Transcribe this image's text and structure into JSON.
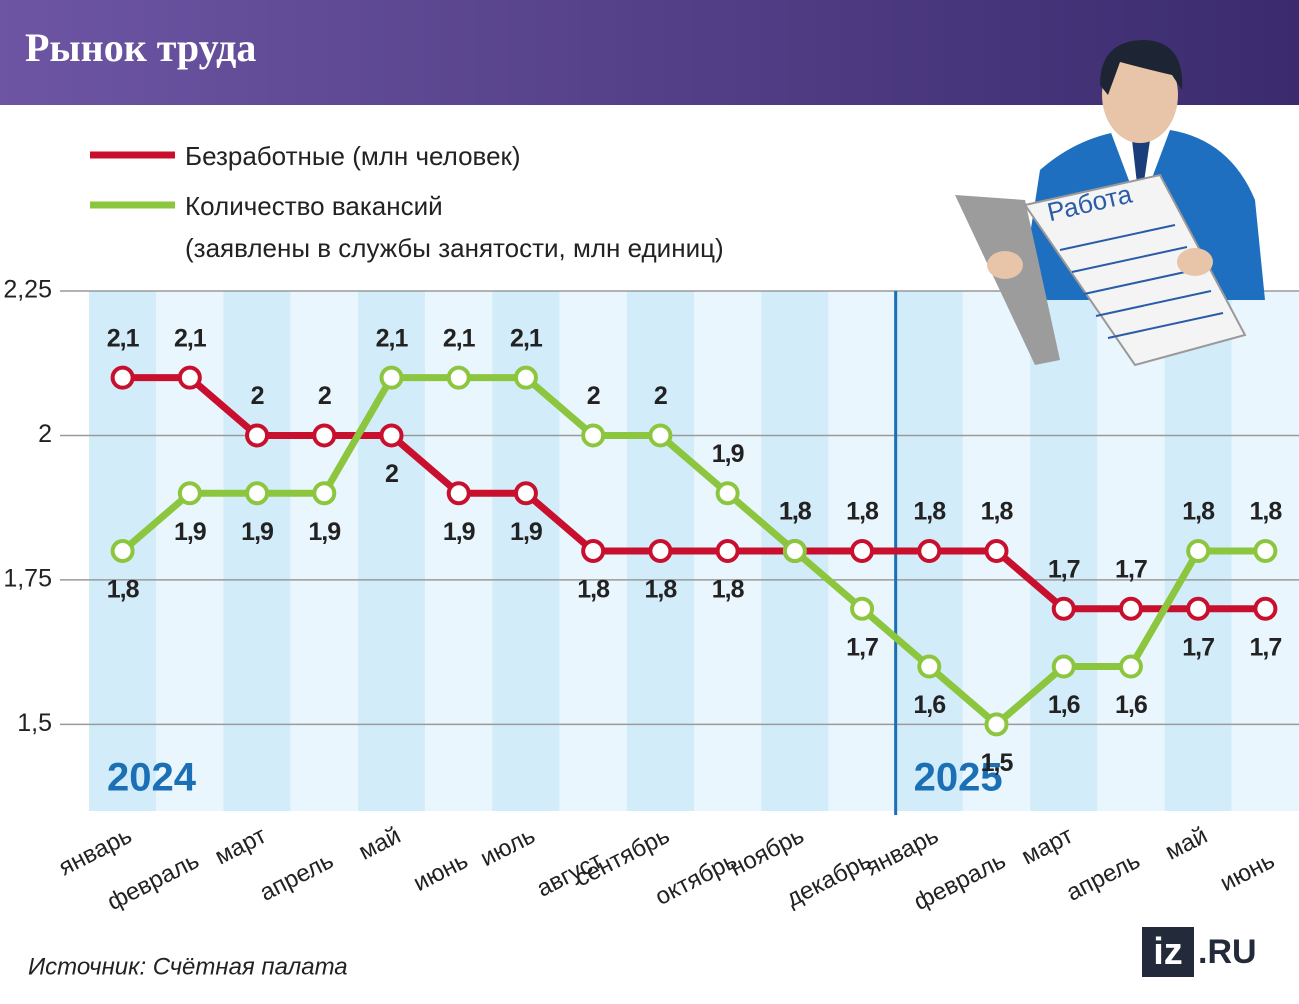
{
  "chart_data": {
    "type": "line",
    "title": "Рынок труда",
    "categories": [
      "январь",
      "февраль",
      "март",
      "апрель",
      "май",
      "июнь",
      "июль",
      "август",
      "сентябрь",
      "октябрь",
      "ноябрь",
      "декабрь",
      "январь",
      "февраль",
      "март",
      "апрель",
      "май",
      "июнь"
    ],
    "years": [
      "2024",
      "2025"
    ],
    "series": [
      {
        "name": "Безработные (млн человек)",
        "color": "#c8102e",
        "values": [
          2.1,
          2.1,
          2,
          2,
          2,
          1.9,
          1.9,
          1.8,
          1.8,
          1.8,
          1.8,
          1.8,
          1.8,
          1.8,
          1.7,
          1.7,
          1.7,
          1.7
        ],
        "value_labels": [
          "2,1",
          "2,1",
          "2",
          "2",
          "2",
          "1,9",
          "1,9",
          "1,8",
          "1,8",
          "1,8",
          "1,8",
          "1,8",
          "1,8",
          "1,8",
          "1,7",
          "1,7",
          "1,7",
          "1,7"
        ]
      },
      {
        "name": "Количество вакансий\n(заявлены в службы занятости, млн единиц)",
        "color": "#8cc63f",
        "values": [
          1.8,
          1.9,
          1.9,
          1.9,
          2.1,
          2.1,
          2.1,
          2,
          2,
          1.9,
          1.8,
          1.7,
          1.6,
          1.5,
          1.6,
          1.6,
          1.8,
          1.8
        ],
        "value_labels": [
          "1,8",
          "1,9",
          "1,9",
          "1,9",
          "2,1",
          "2,1",
          "2,1",
          "2",
          "2",
          "1,9",
          "1,8",
          "1,7",
          "1,6",
          "1,5",
          "1,6",
          "1,6",
          "1,8",
          "1,8"
        ]
      }
    ],
    "ylim": [
      1.35,
      2.25
    ],
    "yticks": [
      {
        "value": 1.5,
        "label": "1,5"
      },
      {
        "value": 1.75,
        "label": "1,75"
      },
      2,
      {
        "value": 2.25,
        "label": "2,25"
      }
    ],
    "grid": true,
    "illustration_text": "Работа",
    "source": "Источник: Счётная палата",
    "logo_mark": "iz",
    "logo_domain": ".RU"
  }
}
